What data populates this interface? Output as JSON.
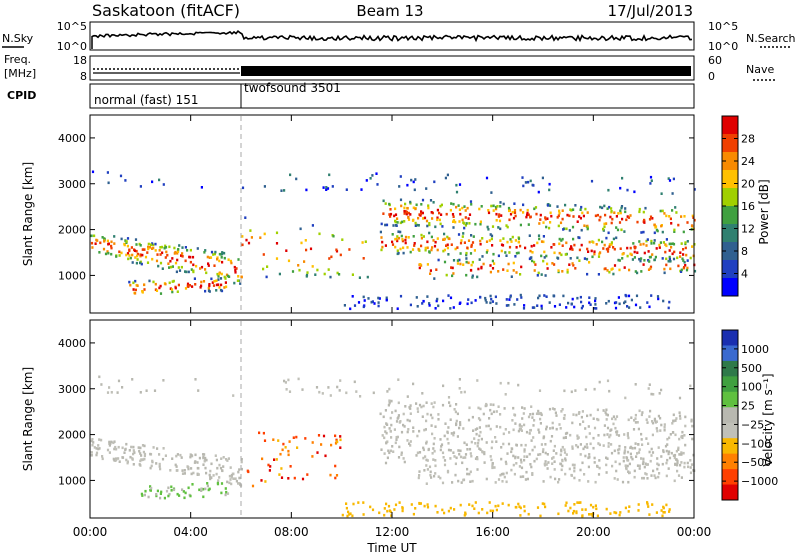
{
  "header": {
    "station": "Saskatoon (fitACF)",
    "beam": "Beam 13",
    "date": "17/Jul/2013"
  },
  "top_panels": {
    "sky_label": "N.Sky",
    "search_label": "N.Search",
    "noise_ticks_left": [
      "10^5",
      "10^0"
    ],
    "noise_ticks_right": [
      "10^5",
      "10^0"
    ],
    "freq_label_1": "Freq.",
    "freq_label_2": "[MHz]",
    "freq_ticks": [
      "18",
      "8"
    ],
    "nave_ticks": [
      "60",
      "0"
    ],
    "nave_label": "Nave",
    "cpid_label": "CPID",
    "modes": [
      {
        "name": "normal (fast) 151",
        "start_hour": 0
      },
      {
        "name": "twofsound 3501",
        "start_hour": 6
      }
    ]
  },
  "chart_data": [
    {
      "type": "heatmap",
      "panel": "power",
      "ylabel": "Slant Range [km]",
      "colorbar_label": "Power [dB]",
      "colorbar_ticks": [
        "28",
        "24",
        "20",
        "16",
        "12",
        "8",
        "4"
      ],
      "colorbar_colors": [
        "#e00000",
        "#f04000",
        "#f88a00",
        "#ffc000",
        "#a0d000",
        "#40a040",
        "#308070",
        "#306090",
        "#2040c0",
        "#0000ff"
      ],
      "y_ticks": [
        "4000",
        "3000",
        "2000",
        "1000"
      ],
      "ylim": [
        180,
        4500
      ],
      "xlim_hours": [
        0,
        24
      ]
    },
    {
      "type": "heatmap",
      "panel": "velocity",
      "ylabel": "Slant Range [km]",
      "colorbar_label": "Velocity [m s⁻¹]",
      "colorbar_ticks": [
        "1000",
        "500",
        "100",
        "25",
        "−25",
        "−100",
        "−500",
        "−1000"
      ],
      "colorbar_colors": [
        "#1a2fb0",
        "#3a6ad0",
        "#2f7a4a",
        "#40a040",
        "#60c040",
        "#b8b8b0",
        "#c0c0b8",
        "#f8b800",
        "#ff8000",
        "#ff4000",
        "#e00000"
      ],
      "y_ticks": [
        "4000",
        "3000",
        "2000",
        "1000"
      ],
      "ylim": [
        180,
        4500
      ],
      "xlim_hours": [
        0,
        24
      ]
    }
  ],
  "x_axis": {
    "ticks": [
      "00:00",
      "04:00",
      "08:00",
      "12:00",
      "16:00",
      "20:00",
      "00:00"
    ],
    "label": "Time UT"
  }
}
